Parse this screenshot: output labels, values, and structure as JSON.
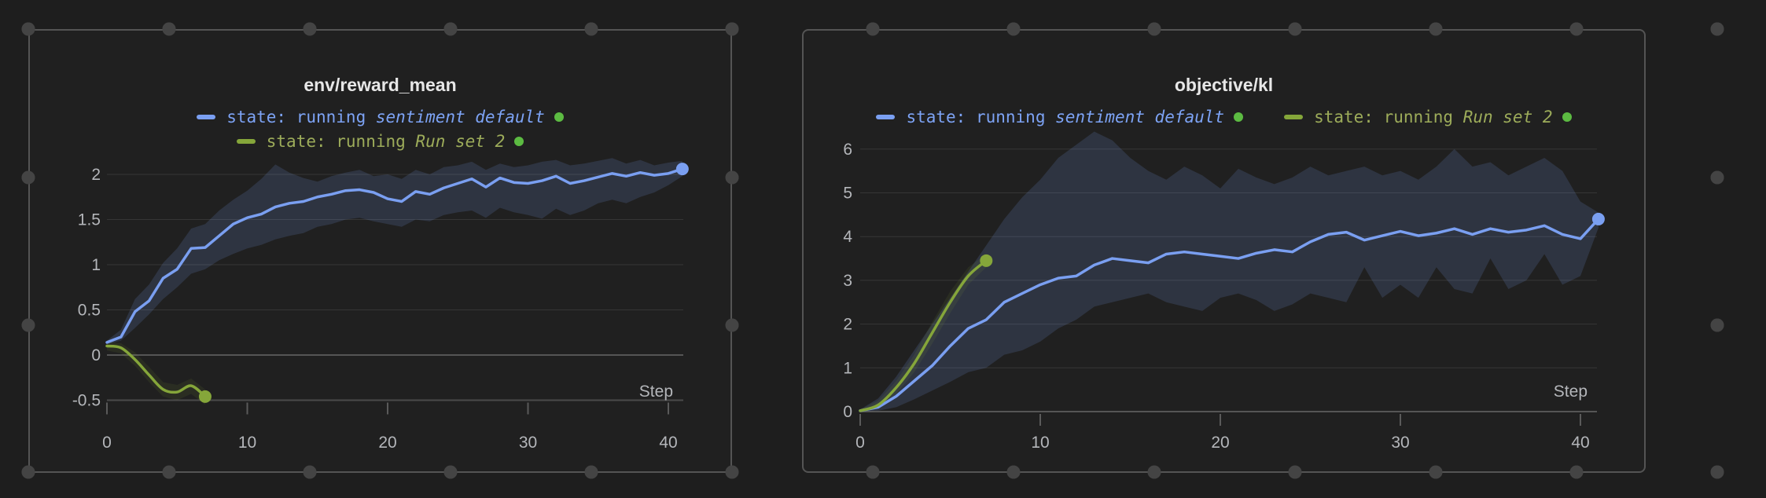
{
  "page": {
    "background": "#1e1e1e",
    "panel_background": "#202020",
    "panel_border_color": "#545454",
    "grid_dot_color": "#444444",
    "gridline_color": "#363636",
    "zero_line_color": "#555555",
    "axis_line_color": "#4a4a4a",
    "tick_mark_color": "#5a5a5a",
    "tick_label_color": "#b4b6ba",
    "title_color": "#e7e7e7"
  },
  "chart_data": [
    {
      "type": "line",
      "title": "env/reward_mean",
      "xlabel": "Step",
      "x_ticks": [
        0,
        10,
        20,
        30,
        40
      ],
      "y_ticks": [
        2,
        1.5,
        1,
        0.5,
        0,
        -0.5
      ],
      "xlim": [
        0,
        41.3
      ],
      "ylim": [
        -0.72,
        2.3
      ],
      "grid": true,
      "legend_position": "top-center-stacked",
      "legend_rows": [
        [
          0
        ],
        [
          1
        ]
      ],
      "series": [
        {
          "legend_label": "state: running",
          "run_name": "sentiment default",
          "color": "#7a9ff1",
          "text_color": "#7da3f5",
          "band_color": "rgba(122,159,241,0.16)",
          "status_dot_color": "#5cbb42",
          "end_dot": true,
          "smooth": false,
          "x": [
            0,
            1,
            2,
            3,
            4,
            5,
            6,
            7,
            8,
            9,
            10,
            11,
            12,
            13,
            14,
            15,
            16,
            17,
            18,
            19,
            20,
            21,
            22,
            23,
            24,
            25,
            26,
            27,
            28,
            29,
            30,
            31,
            32,
            33,
            34,
            35,
            36,
            37,
            38,
            39,
            40,
            41
          ],
          "y": [
            0.14,
            0.2,
            0.48,
            0.6,
            0.85,
            0.95,
            1.18,
            1.19,
            1.32,
            1.45,
            1.52,
            1.56,
            1.64,
            1.68,
            1.7,
            1.75,
            1.78,
            1.82,
            1.83,
            1.8,
            1.73,
            1.7,
            1.81,
            1.78,
            1.85,
            1.9,
            1.95,
            1.86,
            1.96,
            1.91,
            1.9,
            1.93,
            1.98,
            1.9,
            1.93,
            1.97,
            2.01,
            1.98,
            2.02,
            1.99,
            2.01,
            2.06
          ],
          "band_lower": [
            0.12,
            0.16,
            0.3,
            0.45,
            0.62,
            0.75,
            0.9,
            0.95,
            1.05,
            1.12,
            1.18,
            1.22,
            1.28,
            1.32,
            1.35,
            1.42,
            1.45,
            1.5,
            1.52,
            1.48,
            1.45,
            1.42,
            1.5,
            1.48,
            1.55,
            1.58,
            1.6,
            1.52,
            1.63,
            1.58,
            1.55,
            1.51,
            1.62,
            1.55,
            1.6,
            1.68,
            1.72,
            1.68,
            1.75,
            1.8,
            1.88,
            1.98
          ],
          "band_upper": [
            0.16,
            0.28,
            0.62,
            0.78,
            1.02,
            1.18,
            1.4,
            1.45,
            1.6,
            1.72,
            1.82,
            1.95,
            2.11,
            2.02,
            1.96,
            1.92,
            1.98,
            2.02,
            2.05,
            1.98,
            2.0,
            1.95,
            2.05,
            2.0,
            2.08,
            2.1,
            2.14,
            2.05,
            2.12,
            2.08,
            2.1,
            2.14,
            2.16,
            2.1,
            2.12,
            2.15,
            2.18,
            2.12,
            2.16,
            2.1,
            2.13,
            2.15
          ]
        },
        {
          "legend_label": "state: running",
          "run_name": "Run set 2",
          "color": "#85a63a",
          "text_color": "#9dac5a",
          "band_color": "rgba(133,166,58,0.10)",
          "status_dot_color": "#5cbb42",
          "end_dot": true,
          "smooth": true,
          "x": [
            0,
            1,
            2,
            3,
            4,
            5,
            6,
            7
          ],
          "y": [
            0.1,
            0.08,
            -0.05,
            -0.22,
            -0.38,
            -0.41,
            -0.34,
            -0.46
          ],
          "band_lower": [
            0.05,
            0.02,
            -0.12,
            -0.3,
            -0.46,
            -0.5,
            -0.43,
            -0.55
          ],
          "band_upper": [
            0.15,
            0.13,
            0.03,
            -0.13,
            -0.3,
            -0.33,
            -0.26,
            -0.38
          ]
        }
      ]
    },
    {
      "type": "line",
      "title": "objective/kl",
      "xlabel": "Step",
      "x_ticks": [
        0,
        10,
        20,
        30,
        40
      ],
      "y_ticks": [
        6,
        5,
        4,
        3,
        2,
        1,
        0
      ],
      "xlim": [
        0,
        41.3
      ],
      "ylim": [
        -0.25,
        6.4
      ],
      "grid": true,
      "legend_position": "top-center-inline",
      "legend_rows": [
        [
          0,
          1
        ]
      ],
      "series": [
        {
          "legend_label": "state: running",
          "run_name": "sentiment default",
          "color": "#7a9ff1",
          "text_color": "#7da3f5",
          "band_color": "rgba(122,159,241,0.16)",
          "status_dot_color": "#5cbb42",
          "end_dot": true,
          "smooth": false,
          "x": [
            0,
            1,
            2,
            3,
            4,
            5,
            6,
            7,
            8,
            9,
            10,
            11,
            12,
            13,
            14,
            15,
            16,
            17,
            18,
            19,
            20,
            21,
            22,
            23,
            24,
            25,
            26,
            27,
            28,
            29,
            30,
            31,
            32,
            33,
            34,
            35,
            36,
            37,
            38,
            39,
            40,
            41
          ],
          "y": [
            0.02,
            0.1,
            0.35,
            0.7,
            1.05,
            1.5,
            1.9,
            2.1,
            2.5,
            2.7,
            2.9,
            3.05,
            3.1,
            3.35,
            3.5,
            3.45,
            3.4,
            3.6,
            3.65,
            3.6,
            3.55,
            3.5,
            3.62,
            3.7,
            3.65,
            3.88,
            4.05,
            4.1,
            3.92,
            4.02,
            4.12,
            4.02,
            4.08,
            4.18,
            4.05,
            4.18,
            4.1,
            4.15,
            4.25,
            4.05,
            3.95,
            4.4
          ],
          "band_lower": [
            0.0,
            0.02,
            0.1,
            0.28,
            0.48,
            0.68,
            0.9,
            1.0,
            1.3,
            1.4,
            1.6,
            1.9,
            2.1,
            2.4,
            2.5,
            2.6,
            2.7,
            2.5,
            2.4,
            2.3,
            2.6,
            2.7,
            2.55,
            2.3,
            2.45,
            2.7,
            2.6,
            2.5,
            3.3,
            2.6,
            2.9,
            2.6,
            3.3,
            2.8,
            2.7,
            3.5,
            2.8,
            3.0,
            3.6,
            2.9,
            3.1,
            4.2
          ],
          "band_upper": [
            0.05,
            0.3,
            0.8,
            1.4,
            2.0,
            2.6,
            3.2,
            3.8,
            4.4,
            4.9,
            5.3,
            5.8,
            6.1,
            6.4,
            6.2,
            5.8,
            5.5,
            5.3,
            5.6,
            5.4,
            5.1,
            5.55,
            5.35,
            5.2,
            5.35,
            5.6,
            5.4,
            5.5,
            5.6,
            5.4,
            5.5,
            5.3,
            5.6,
            6.0,
            5.6,
            5.7,
            5.4,
            5.6,
            5.8,
            5.5,
            4.8,
            4.55
          ]
        },
        {
          "legend_label": "state: running",
          "run_name": "Run set 2",
          "color": "#85a63a",
          "text_color": "#9dac5a",
          "band_color": "rgba(133,166,58,0.10)",
          "status_dot_color": "#5cbb42",
          "end_dot": true,
          "smooth": true,
          "x": [
            0,
            1,
            2,
            3,
            4,
            5,
            6,
            7
          ],
          "y": [
            0.02,
            0.15,
            0.55,
            1.1,
            1.8,
            2.5,
            3.1,
            3.45
          ],
          "band_lower": [
            0.0,
            0.08,
            0.4,
            0.9,
            1.55,
            2.25,
            2.9,
            3.3
          ],
          "band_upper": [
            0.05,
            0.25,
            0.7,
            1.3,
            2.05,
            2.75,
            3.3,
            3.6
          ]
        }
      ]
    }
  ]
}
